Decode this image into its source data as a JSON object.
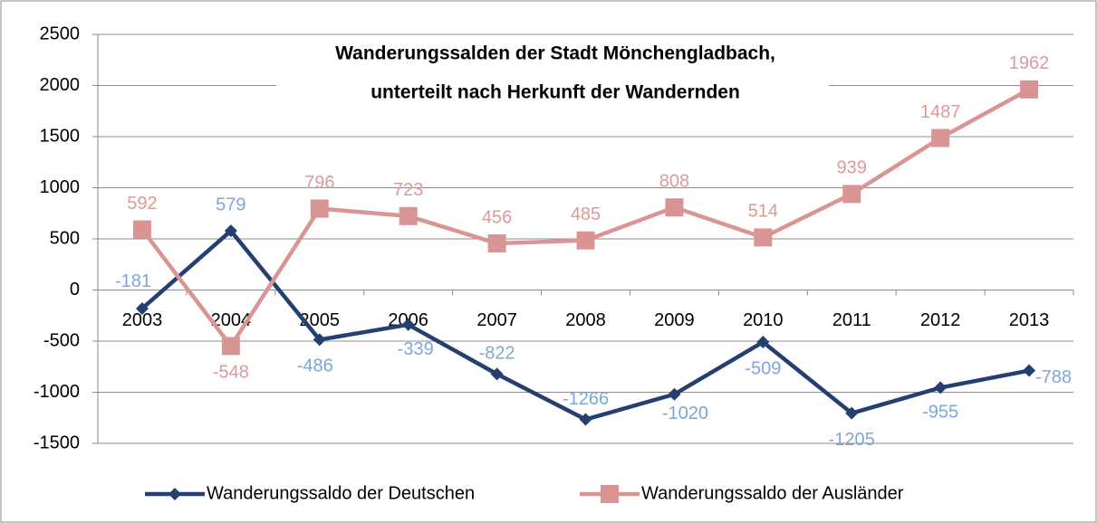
{
  "chart_data": {
    "type": "line",
    "title": [
      "Wanderungssalden der Stadt Mönchengladbach,",
      "unterteilt nach Herkunft der Wandernden"
    ],
    "categories": [
      "2003",
      "2004",
      "2005",
      "2006",
      "2007",
      "2008",
      "2009",
      "2010",
      "2011",
      "2012",
      "2013"
    ],
    "series": [
      {
        "name": "Wanderungssaldo der Deutschen",
        "color": "#243f70",
        "label_color": "#7ea6d9",
        "marker": "diamond",
        "values": [
          -181,
          579,
          -486,
          -339,
          -822,
          -1266,
          -1020,
          -509,
          -1205,
          -955,
          -788
        ]
      },
      {
        "name": "Wanderungssaldo der Ausländer",
        "color": "#d99594",
        "label_color": "#dc9a98",
        "marker": "square",
        "values": [
          592,
          -548,
          796,
          723,
          456,
          485,
          808,
          514,
          939,
          1487,
          1962
        ]
      }
    ],
    "ylim": [
      -1500,
      2500
    ],
    "yticks": [
      -1500,
      -1000,
      -500,
      0,
      500,
      1000,
      1500,
      2000,
      2500
    ],
    "grid": true,
    "legend": "bottom"
  }
}
